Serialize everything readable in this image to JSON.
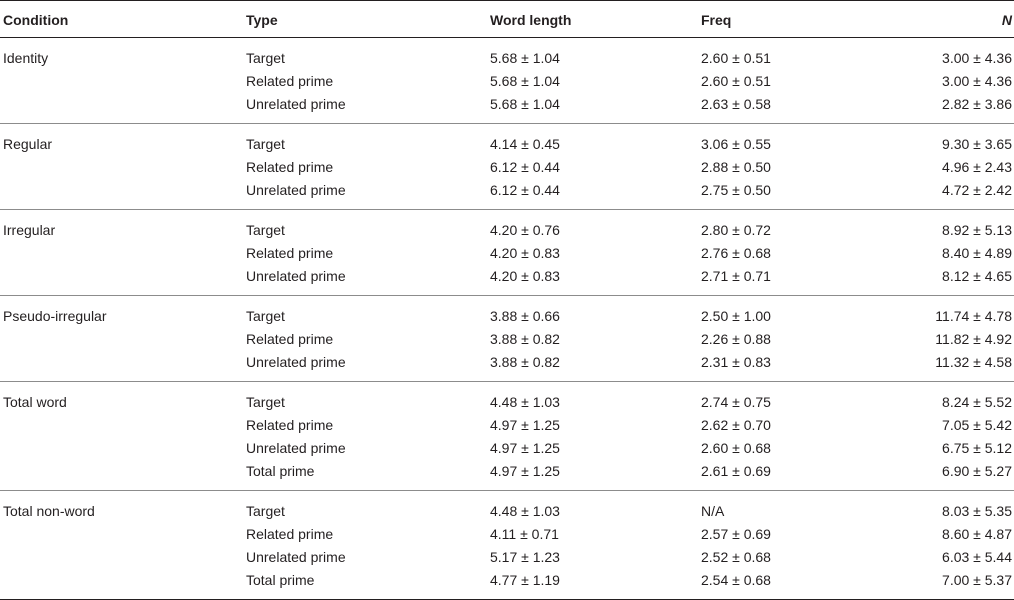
{
  "headers": {
    "condition": "Condition",
    "type": "Type",
    "word_length": "Word length",
    "freq": "Freq",
    "n": "N"
  },
  "groups": [
    {
      "condition": "Identity",
      "rows": [
        {
          "type": "Target",
          "word_length": "5.68 ± 1.04",
          "freq": "2.60 ± 0.51",
          "n": "3.00 ± 4.36"
        },
        {
          "type": "Related prime",
          "word_length": "5.68 ± 1.04",
          "freq": "2.60 ± 0.51",
          "n": "3.00 ± 4.36"
        },
        {
          "type": "Unrelated prime",
          "word_length": "5.68 ± 1.04",
          "freq": "2.63 ± 0.58",
          "n": "2.82 ± 3.86"
        }
      ]
    },
    {
      "condition": "Regular",
      "rows": [
        {
          "type": "Target",
          "word_length": "4.14 ± 0.45",
          "freq": "3.06 ± 0.55",
          "n": "9.30 ± 3.65"
        },
        {
          "type": "Related prime",
          "word_length": "6.12 ± 0.44",
          "freq": "2.88 ± 0.50",
          "n": "4.96 ± 2.43"
        },
        {
          "type": "Unrelated prime",
          "word_length": "6.12 ± 0.44",
          "freq": "2.75 ± 0.50",
          "n": "4.72 ± 2.42"
        }
      ]
    },
    {
      "condition": "Irregular",
      "rows": [
        {
          "type": "Target",
          "word_length": "4.20 ± 0.76",
          "freq": "2.80 ± 0.72",
          "n": "8.92 ± 5.13"
        },
        {
          "type": "Related prime",
          "word_length": "4.20 ± 0.83",
          "freq": "2.76 ± 0.68",
          "n": "8.40 ± 4.89"
        },
        {
          "type": "Unrelated prime",
          "word_length": "4.20 ± 0.83",
          "freq": "2.71 ± 0.71",
          "n": "8.12 ± 4.65"
        }
      ]
    },
    {
      "condition": "Pseudo-irregular",
      "rows": [
        {
          "type": "Target",
          "word_length": "3.88 ± 0.66",
          "freq": "2.50 ± 1.00",
          "n": "11.74 ± 4.78"
        },
        {
          "type": "Related prime",
          "word_length": "3.88 ± 0.82",
          "freq": "2.26 ± 0.88",
          "n": "11.82 ± 4.92"
        },
        {
          "type": "Unrelated prime",
          "word_length": "3.88 ± 0.82",
          "freq": "2.31 ± 0.83",
          "n": "11.32 ± 4.58"
        }
      ]
    },
    {
      "condition": "Total word",
      "rows": [
        {
          "type": "Target",
          "word_length": "4.48 ± 1.03",
          "freq": "2.74 ± 0.75",
          "n": "8.24 ± 5.52"
        },
        {
          "type": "Related prime",
          "word_length": "4.97 ± 1.25",
          "freq": "2.62 ± 0.70",
          "n": "7.05 ± 5.42"
        },
        {
          "type": "Unrelated prime",
          "word_length": "4.97 ± 1.25",
          "freq": "2.60 ± 0.68",
          "n": "6.75 ± 5.12"
        },
        {
          "type": "Total prime",
          "word_length": "4.97 ± 1.25",
          "freq": "2.61 ± 0.69",
          "n": "6.90 ± 5.27"
        }
      ]
    },
    {
      "condition": "Total non-word",
      "rows": [
        {
          "type": "Target",
          "word_length": "4.48 ± 1.03",
          "freq": "N/A",
          "n": "8.03 ± 5.35"
        },
        {
          "type": "Related prime",
          "word_length": "4.11 ± 0.71",
          "freq": "2.57 ± 0.69",
          "n": "8.60 ± 4.87"
        },
        {
          "type": "Unrelated prime",
          "word_length": "5.17 ± 1.23",
          "freq": "2.52 ± 0.68",
          "n": "6.03 ± 5.44"
        },
        {
          "type": "Total prime",
          "word_length": "4.77 ± 1.19",
          "freq": "2.54 ± 0.68",
          "n": "7.00 ± 5.37"
        }
      ]
    }
  ]
}
